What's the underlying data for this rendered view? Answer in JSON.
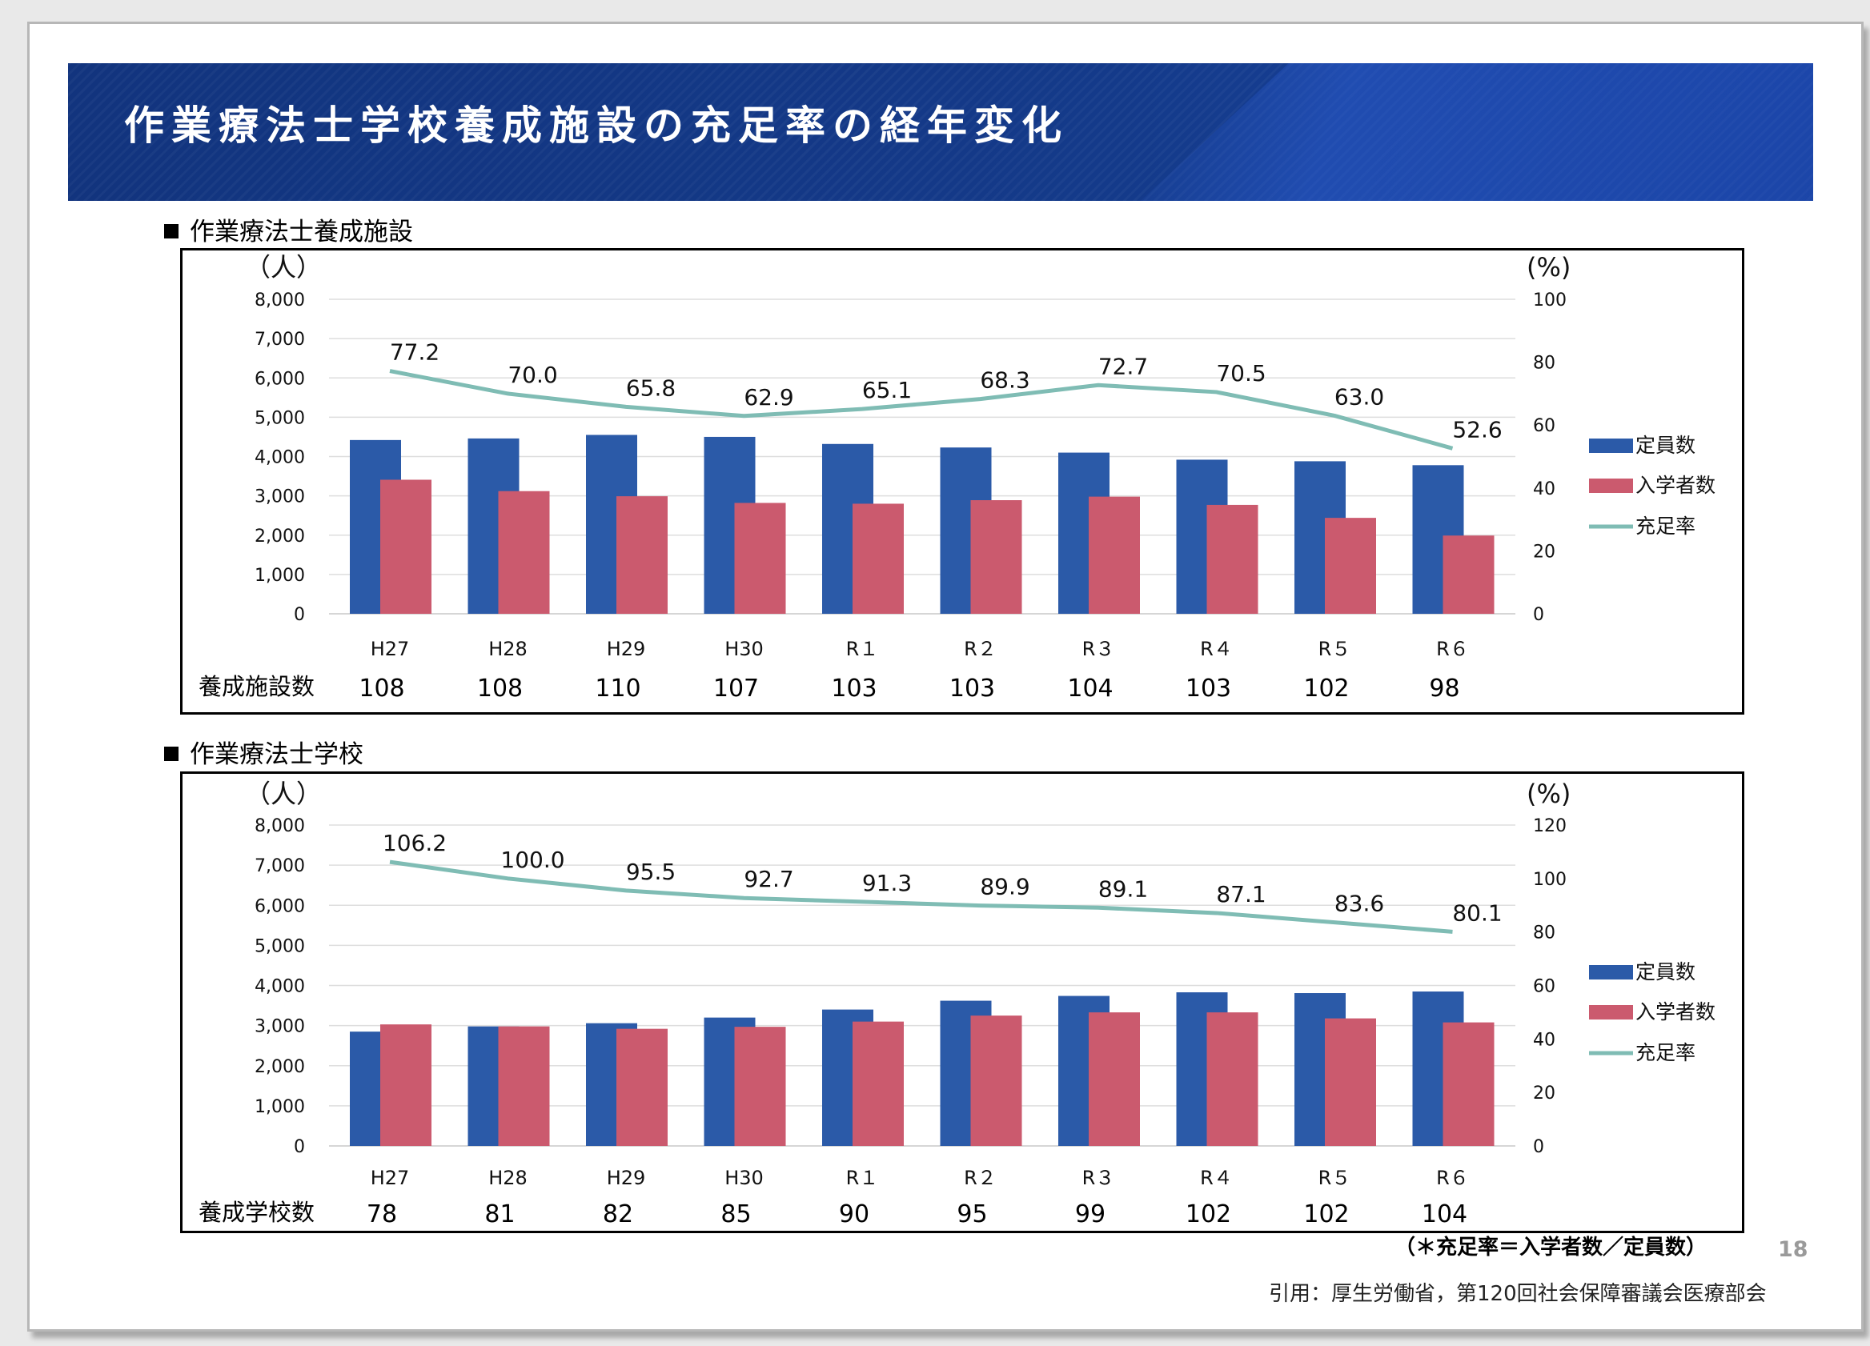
{
  "title": "作業療法士学校養成施設の充足率の経年変化",
  "colors": {
    "capacity": "#2b5aa8",
    "enrollment": "#cb5a6e",
    "rate": "#7fbcb4",
    "banner": "#12347e"
  },
  "chart_data": [
    {
      "type": "bar",
      "section_label": "作業療法士養成施設",
      "y_left_label": "（人）",
      "y_right_label": "(%)",
      "ylim": [
        0,
        8000
      ],
      "y_ticks": [
        "8,000",
        "7,000",
        "6,000",
        "5,000",
        "4,000",
        "3,000",
        "2,000",
        "1,000",
        "0"
      ],
      "y2lim": [
        0,
        100
      ],
      "y2_ticks": [
        "100",
        "80",
        "60",
        "40",
        "20",
        "0"
      ],
      "categories": [
        "H27",
        "H28",
        "H29",
        "H30",
        "R１",
        "R２",
        "R３",
        "R４",
        "R５",
        "R６"
      ],
      "series": [
        {
          "name": "定員数",
          "kind": "bar",
          "values": [
            4420,
            4460,
            4550,
            4500,
            4320,
            4230,
            4100,
            3920,
            3880,
            3780
          ]
        },
        {
          "name": "入学者数",
          "kind": "bar",
          "values": [
            3410,
            3120,
            2990,
            2820,
            2800,
            2890,
            2980,
            2770,
            2440,
            1990
          ]
        },
        {
          "name": "充足率",
          "kind": "line",
          "axis": "right",
          "values": [
            77.2,
            70.0,
            65.8,
            62.9,
            65.1,
            68.3,
            72.7,
            70.5,
            63.0,
            52.6
          ],
          "labels": [
            "77.2",
            "70.0",
            "65.8",
            "62.9",
            "65.1",
            "68.3",
            "72.7",
            "70.5",
            "63.0",
            "52.6"
          ]
        }
      ],
      "footer_label": "養成施設数",
      "footer_values": [
        "108",
        "108",
        "110",
        "107",
        "103",
        "103",
        "104",
        "103",
        "102",
        "98"
      ]
    },
    {
      "type": "bar",
      "section_label": "作業療法士学校",
      "y_left_label": "（人）",
      "y_right_label": "(%)",
      "ylim": [
        0,
        8000
      ],
      "y_ticks": [
        "8,000",
        "7,000",
        "6,000",
        "5,000",
        "4,000",
        "3,000",
        "2,000",
        "1,000",
        "0"
      ],
      "y2lim": [
        0,
        120
      ],
      "y2_ticks": [
        "120",
        "100",
        "80",
        "60",
        "40",
        "20",
        "0"
      ],
      "categories": [
        "H27",
        "H28",
        "H29",
        "H30",
        "R１",
        "R２",
        "R３",
        "R４",
        "R５",
        "R６"
      ],
      "series": [
        {
          "name": "定員数",
          "kind": "bar",
          "values": [
            2850,
            2980,
            3060,
            3200,
            3400,
            3620,
            3740,
            3830,
            3810,
            3850
          ]
        },
        {
          "name": "入学者数",
          "kind": "bar",
          "values": [
            3030,
            2980,
            2920,
            2970,
            3100,
            3250,
            3330,
            3330,
            3180,
            3080
          ]
        },
        {
          "name": "充足率",
          "kind": "line",
          "axis": "right",
          "values": [
            106.2,
            100.0,
            95.5,
            92.7,
            91.3,
            89.9,
            89.1,
            87.1,
            83.6,
            80.1
          ],
          "labels": [
            "106.2",
            "100.0",
            "95.5",
            "92.7",
            "91.3",
            "89.9",
            "89.1",
            "87.1",
            "83.6",
            "80.1"
          ]
        }
      ],
      "footer_label": "養成学校数",
      "footer_values": [
        "78",
        "81",
        "82",
        "85",
        "90",
        "95",
        "99",
        "102",
        "102",
        "104"
      ]
    }
  ],
  "footnote": "（＊充足率＝入学者数／定員数）",
  "page_number": "18",
  "citation": "引用：厚生労働省，第120回社会保障審議会医療部会"
}
